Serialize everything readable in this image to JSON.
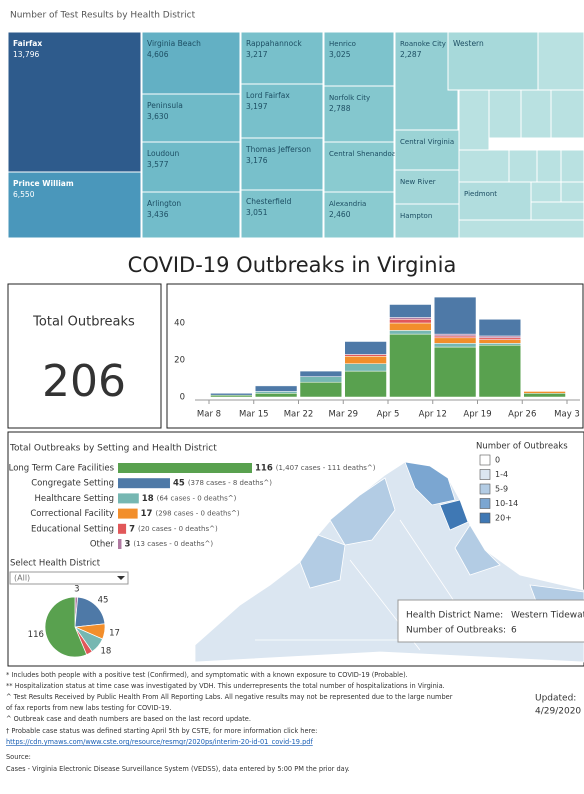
{
  "treemap": {
    "title": "Number of Test Results by Health District",
    "items": [
      {
        "name": "Fairfax",
        "value": 13796,
        "value_label": "13,796",
        "color": "#2e5b8c"
      },
      {
        "name": "Prince William",
        "value": 6550,
        "value_label": "6,550",
        "color": "#4a97bb"
      },
      {
        "name": "Virginia Beach",
        "value": 4606,
        "value_label": "4,606",
        "color": "#63b0c4"
      },
      {
        "name": "Peninsula",
        "value": 3630,
        "value_label": "3,630",
        "color": "#6fbac8"
      },
      {
        "name": "Loudoun",
        "value": 3577,
        "value_label": "3,577",
        "color": "#6fbac8"
      },
      {
        "name": "Arlington",
        "value": 3436,
        "value_label": "3,436",
        "color": "#72bcca"
      },
      {
        "name": "Rappahannock",
        "value": 3217,
        "value_label": "3,217",
        "color": "#78c0cb"
      },
      {
        "name": "Lord Fairfax",
        "value": 3197,
        "value_label": "3,197",
        "color": "#78c0cb"
      },
      {
        "name": "Thomas Jefferson",
        "value": 3176,
        "value_label": "3,176",
        "color": "#78c0cb"
      },
      {
        "name": "Chesterfield",
        "value": 3051,
        "value_label": "3,051",
        "color": "#7dc3cc"
      },
      {
        "name": "Henrico",
        "value": 3025,
        "value_label": "3,025",
        "color": "#7dc3cc"
      },
      {
        "name": "Norfolk City",
        "value": 2788,
        "value_label": "2,788",
        "color": "#84c7ce"
      },
      {
        "name": "Central Shenandoah",
        "color": "#8acbd0"
      },
      {
        "name": "Alexandria",
        "value": 2460,
        "value_label": "2,460",
        "color": "#8acbd0"
      },
      {
        "name": "Roanoke City",
        "value": 2287,
        "value_label": "2,287",
        "color": "#94cfd3"
      },
      {
        "name": "Central Virginia",
        "color": "#9bd3d5"
      },
      {
        "name": "New River",
        "color": "#a2d6d8"
      },
      {
        "name": "Hampton",
        "color": "#a2d6d8"
      },
      {
        "name": "Western",
        "color": "#a7d9da"
      },
      {
        "name": "Piedmont",
        "color": "#b1ddde"
      }
    ]
  },
  "title": "COVID-19 Outbreaks in Virginia",
  "total": {
    "label": "Total Outbreaks",
    "value": "206"
  },
  "chart_data": [
    {
      "type": "bar",
      "stacked": true,
      "categories": [
        "Mar 8",
        "Mar 15",
        "Mar 22",
        "Mar 29",
        "Apr 5",
        "Apr 12",
        "Apr 19",
        "Apr 26",
        "May 3"
      ],
      "ylim": [
        0,
        60
      ],
      "yticks": [
        0,
        20,
        40
      ],
      "series": [
        {
          "name": "Long Term Care Facilities",
          "color": "#59a14f",
          "values": [
            1,
            2,
            8,
            14,
            34,
            27,
            28,
            2,
            null
          ]
        },
        {
          "name": "Healthcare Setting",
          "color": "#76b7b2",
          "values": [
            0,
            1,
            3,
            4,
            2,
            2,
            1,
            0,
            null
          ]
        },
        {
          "name": "Correctional Facility",
          "color": "#f28e2b",
          "values": [
            0,
            0,
            0,
            4,
            4,
            3,
            2,
            1,
            null
          ]
        },
        {
          "name": "Educational Setting",
          "color": "#e15759",
          "values": [
            0,
            0,
            0,
            1,
            2,
            1,
            1,
            0,
            null
          ]
        },
        {
          "name": "Other",
          "color": "#b07aa1",
          "values": [
            0,
            0,
            0,
            0,
            1,
            1,
            1,
            0,
            null
          ]
        },
        {
          "name": "Congregate Setting",
          "color": "#4e79a7",
          "values": [
            1,
            3,
            3,
            7,
            7,
            20,
            9,
            0,
            null
          ]
        }
      ]
    },
    {
      "type": "hbar",
      "title": "Total Outbreaks by Setting and Health District",
      "categories": [
        "Long Term Care Facilities",
        "Congregate Setting",
        "Healthcare Setting",
        "Correctional Facility",
        "Educational Setting",
        "Other"
      ],
      "values": [
        116,
        45,
        18,
        17,
        7,
        3
      ],
      "details": [
        "(1,407 cases - 111 deaths^)",
        "(378 cases - 8 deaths^)",
        "(64 cases - 0 deaths^)",
        "(298 cases - 0 deaths^)",
        "(20 cases - 0 deaths^)",
        "(13 cases - 0 deaths^)"
      ],
      "colors": [
        "#59a14f",
        "#4e79a7",
        "#76b7b2",
        "#f28e2b",
        "#e15759",
        "#b07aa1"
      ],
      "xlim": [
        0,
        116
      ]
    },
    {
      "type": "pie",
      "values": [
        3,
        45,
        17,
        18,
        7,
        116
      ],
      "value_labels": [
        "3",
        "45",
        "17",
        "18",
        null,
        "116"
      ],
      "colors": [
        "#b07aa1",
        "#4e79a7",
        "#f28e2b",
        "#76b7b2",
        "#e15759",
        "#59a14f"
      ]
    }
  ],
  "filter": {
    "label": "Select Health District",
    "value": "(All)"
  },
  "map": {
    "legend_title": "Number of Outbreaks",
    "legend": [
      {
        "label": "0",
        "color": "#ffffff"
      },
      {
        "label": "1-4",
        "color": "#dbe6f1"
      },
      {
        "label": "5-9",
        "color": "#b3cce4"
      },
      {
        "label": "10-14",
        "color": "#7ba6d1"
      },
      {
        "label": "20+",
        "color": "#3f78b4"
      }
    ],
    "tooltip": {
      "name_label": "Health District Name:",
      "name": "Western Tidewater",
      "count_label": "Number of Outbreaks:",
      "count": "6"
    }
  },
  "footnotes": [
    "* Includes both people with a positive test (Confirmed), and symptomatic with a known exposure to COVID-19 (Probable).",
    "** Hospitalization status at time case was investigated by VDH. This underrepresents the total number of hospitalizations in Virginia.",
    "^ Test Results Received by Public Health From All Reporting Labs.  All negative results may not be represented due to the large number",
    "of fax reports from new labs testing for COVID-19.",
    "^ Outbreak case and death numbers are based on the last record update.",
    "† Probable case status was defined starting April 5th by CSTE, for more information click here:",
    "https://cdn.ymaws.com/www.cste.org/resource/resmgr/2020ps/interim-20-id-01_covid-19.pdf",
    "Source:",
    "Cases - Virginia Electronic Disease Surveillance System (VEDSS), data entered by 5:00 PM the prior day."
  ],
  "updated": {
    "label": "Updated:",
    "date": "4/29/2020"
  }
}
